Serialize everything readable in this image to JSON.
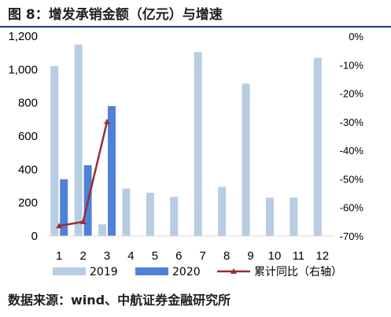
{
  "title": "图 8：增发承销金额（亿元）与增速",
  "source": "数据来源：wind、中航证券金融研究所",
  "colors": {
    "s2019": "#b8cce4",
    "s2020": "#4f81d9",
    "cum": "#9b2d30"
  },
  "chart_data": {
    "type": "bar",
    "categories": [
      "1",
      "2",
      "3",
      "4",
      "5",
      "6",
      "7",
      "8",
      "9",
      "10",
      "11",
      "12"
    ],
    "series": [
      {
        "name": "2019",
        "type": "bar",
        "values": [
          1020,
          1150,
          70,
          285,
          260,
          235,
          1105,
          295,
          915,
          230,
          230,
          1070
        ]
      },
      {
        "name": "2020",
        "type": "bar",
        "values": [
          340,
          425,
          780,
          null,
          null,
          null,
          null,
          null,
          null,
          null,
          null,
          null
        ]
      },
      {
        "name": "累计同比（右轴）",
        "type": "line",
        "axis": "right",
        "values": [
          -66.5,
          -65,
          -30,
          null,
          null,
          null,
          null,
          null,
          null,
          null,
          null,
          null
        ]
      }
    ],
    "yleft": {
      "min": 0,
      "max": 1200,
      "ticks": [
        0,
        200,
        400,
        600,
        800,
        1000,
        1200
      ],
      "tick_labels": [
        "0",
        "200",
        "400",
        "600",
        "800",
        "1,000",
        "1,200"
      ]
    },
    "yright": {
      "min": -70,
      "max": 0,
      "ticks": [
        0,
        -10,
        -20,
        -30,
        -40,
        -50,
        -60,
        -70
      ],
      "tick_labels": [
        "0%",
        "-10%",
        "-20%",
        "-30%",
        "-40%",
        "-50%",
        "-60%",
        "-70%"
      ]
    },
    "legend_position": "bottom",
    "grid": false
  }
}
